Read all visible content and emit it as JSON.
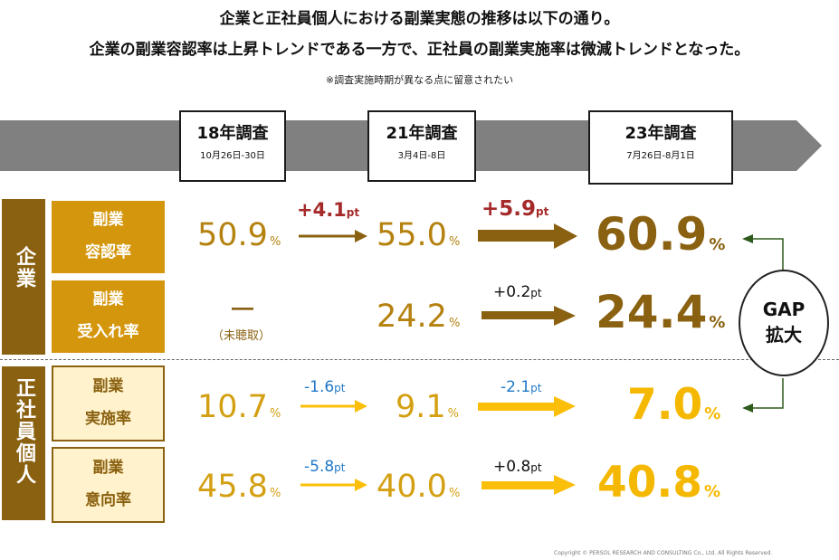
{
  "header": {
    "line1": "企業と正社員個人における副業実態の推移は以下の通り。",
    "line2": "企業の副業容認率は上昇トレンドである一方で、正社員の副業実施率は微減トレンドとなった。",
    "note": "※調査実施時期が異なる点に留意されたい"
  },
  "surveys": [
    {
      "title": "18年調査",
      "dates": "10月26日-30日"
    },
    {
      "title": "21年調査",
      "dates": "3月4日-8日"
    },
    {
      "title": "23年調査",
      "dates": "7月26日-8月1日"
    }
  ],
  "groups": {
    "company": "企業",
    "employee": "正社員個人"
  },
  "rows": [
    {
      "label1": "副業",
      "label2": "容認率",
      "v18": "50.9",
      "v21": "55.0",
      "v23": "60.9",
      "d1": "+4.1",
      "d2": "+5.9",
      "unit": "%",
      "pt": "pt"
    },
    {
      "label1": "副業",
      "label2": "受入れ率",
      "v18": "ー",
      "v18_note": "（未聴取）",
      "v21": "24.2",
      "v23": "24.4",
      "d2": "+0.2",
      "unit": "%",
      "pt": "pt"
    },
    {
      "label1": "副業",
      "label2": "実施率",
      "v18": "10.7",
      "v21": "9.1",
      "v23": "7.0",
      "d1": "-1.6",
      "d2": "-2.1",
      "unit": "%",
      "pt": "pt"
    },
    {
      "label1": "副業",
      "label2": "意向率",
      "v18": "45.8",
      "v21": "40.0",
      "v23": "40.8",
      "d1": "-5.8",
      "d2": "+0.8",
      "unit": "%",
      "pt": "pt"
    }
  ],
  "gap": {
    "line1": "GAP",
    "line2": "拡大"
  },
  "copyright": "Copyright ©  PERSOL  RESEARCH AND CONSULTING Co., Ltd. All Rights Reserved.",
  "colors": {
    "dark_gold": "#8a6110",
    "gold": "#d4960c",
    "yellow": "#fbbf0a",
    "red": "#a52a2a",
    "blue": "#1f78c8",
    "timeline": "#808080"
  },
  "chart_data": {
    "type": "table",
    "categories": [
      "18年調査",
      "21年調査",
      "23年調査"
    ],
    "series": [
      {
        "name": "副業容認率",
        "values": [
          50.9,
          55.0,
          60.9
        ]
      },
      {
        "name": "副業受入れ率",
        "values": [
          null,
          24.2,
          24.4
        ]
      },
      {
        "name": "副業実施率",
        "values": [
          10.7,
          9.1,
          7.0
        ]
      },
      {
        "name": "副業意向率",
        "values": [
          45.8,
          40.0,
          40.8
        ]
      }
    ]
  }
}
